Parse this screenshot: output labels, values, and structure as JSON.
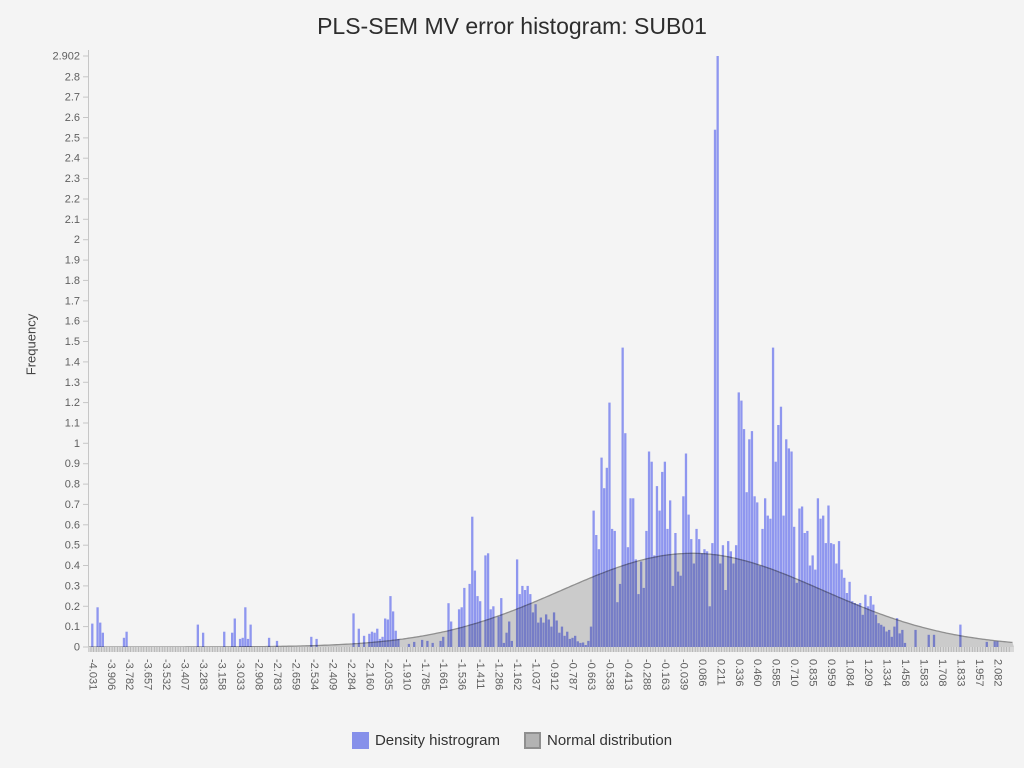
{
  "title": "PLS-SEM MV error histogram: SUB01",
  "ylabel": "Frequency",
  "legend": [
    {
      "label": "Density histrogram",
      "color": "#8690ea"
    },
    {
      "label": "Normal distribution",
      "color": "#b3b3b3",
      "border": "#8f8f8f"
    }
  ],
  "chart_data": {
    "type": "bar",
    "title": "PLS-SEM MV error histogram: SUB01",
    "xlabel": "",
    "ylabel": "Frequency",
    "ylim": [
      0,
      2.902
    ],
    "bin_start": -4.031,
    "bin_width": 0.01782,
    "y_ticks": [
      "0",
      "0.1",
      "0.2",
      "0.3",
      "0.4",
      "0.5",
      "0.6",
      "0.7",
      "0.8",
      "0.9",
      "1",
      "1.1",
      "1.2",
      "1.3",
      "1.4",
      "1.5",
      "1.6",
      "1.7",
      "1.8",
      "1.9",
      "2",
      "2.1",
      "2.2",
      "2.3",
      "2.4",
      "2.5",
      "2.6",
      "2.7",
      "2.8",
      "2.902"
    ],
    "x_tick_labels": [
      "-4.031",
      "-3.906",
      "-3.782",
      "-3.657",
      "-3.532",
      "-3.407",
      "-3.283",
      "-3.158",
      "-3.033",
      "-2.908",
      "-2.783",
      "-2.659",
      "-2.534",
      "-2.409",
      "-2.284",
      "-2.160",
      "-2.035",
      "-1.910",
      "-1.785",
      "-1.661",
      "-1.536",
      "-1.411",
      "-1.286",
      "-1.162",
      "-1.037",
      "-0.912",
      "-0.787",
      "-0.663",
      "-0.538",
      "-0.413",
      "-0.288",
      "-0.163",
      "-0.039",
      "0.086",
      "0.211",
      "0.336",
      "0.460",
      "0.585",
      "0.710",
      "0.835",
      "0.959",
      "1.084",
      "1.209",
      "1.334",
      "1.458",
      "1.583",
      "1.708",
      "1.833",
      "1.957",
      "2.082"
    ],
    "x_label_every_n_bins": 7,
    "normal_curve": {
      "mean": 0.02,
      "sd": 0.88,
      "peak": 0.46
    },
    "legend_labels": [
      "Density histrogram",
      "Normal distribution"
    ],
    "colors": {
      "bar": "#949dfa",
      "legend_bar": "#8690ea",
      "curve_fill": "#cbcbcb",
      "curve_stroke": "#8f8f8f",
      "band": "#d9d9d9",
      "band_tick": "#ababab",
      "axis": "#c6c6c6",
      "tick_text": "#5f5f5f"
    },
    "values": [
      0.115,
      0,
      0.195,
      0.12,
      0.07,
      0,
      0,
      0,
      0,
      0,
      0,
      0,
      0.045,
      0.075,
      0,
      0,
      0,
      0,
      0,
      0,
      0,
      0,
      0,
      0,
      0,
      0,
      0,
      0,
      0,
      0,
      0,
      0,
      0,
      0,
      0,
      0,
      0,
      0,
      0,
      0,
      0.11,
      0,
      0.07,
      0,
      0,
      0,
      0,
      0,
      0,
      0,
      0.075,
      0,
      0,
      0.07,
      0.14,
      0,
      0.04,
      0.045,
      0.195,
      0.04,
      0.11,
      0,
      0,
      0,
      0,
      0,
      0,
      0.045,
      0,
      0,
      0.03,
      0,
      0,
      0,
      0,
      0,
      0,
      0,
      0,
      0,
      0,
      0,
      0,
      0.05,
      0,
      0.04,
      0,
      0,
      0,
      0,
      0,
      0,
      0,
      0,
      0,
      0,
      0,
      0,
      0,
      0.165,
      0,
      0.09,
      0,
      0.055,
      0,
      0.065,
      0.075,
      0.07,
      0.09,
      0.04,
      0.05,
      0.14,
      0.135,
      0.25,
      0.175,
      0.08,
      0.04,
      0,
      0,
      0,
      0.015,
      0,
      0.025,
      0,
      0,
      0.035,
      0,
      0.03,
      0,
      0.02,
      0,
      0,
      0.03,
      0.05,
      0,
      0.215,
      0.125,
      0,
      0,
      0.185,
      0.195,
      0.29,
      0,
      0.31,
      0.64,
      0.375,
      0.25,
      0.225,
      0,
      0.45,
      0.46,
      0.185,
      0.2,
      0,
      0.15,
      0.24,
      0.02,
      0.07,
      0.125,
      0.03,
      0,
      0.43,
      0.26,
      0.3,
      0.28,
      0.3,
      0.26,
      0.17,
      0.21,
      0.12,
      0.145,
      0.12,
      0.16,
      0.135,
      0.1,
      0.17,
      0.13,
      0.07,
      0.1,
      0.055,
      0.075,
      0.04,
      0.045,
      0.055,
      0.028,
      0.02,
      0.022,
      0.01,
      0.03,
      0.1,
      0.67,
      0.55,
      0.48,
      0.93,
      0.78,
      0.88,
      1.2,
      0.58,
      0.57,
      0.22,
      0.31,
      1.47,
      1.05,
      0.49,
      0.73,
      0.73,
      0.43,
      0.26,
      0.42,
      0.29,
      0.57,
      0.96,
      0.91,
      0.45,
      0.79,
      0.67,
      0.86,
      0.91,
      0.58,
      0.72,
      0.3,
      0.56,
      0.37,
      0.35,
      0.74,
      0.95,
      0.65,
      0.53,
      0.41,
      0.58,
      0.53,
      0.46,
      0.48,
      0.47,
      0.2,
      0.51,
      2.54,
      2.902,
      0.41,
      0.5,
      0.28,
      0.52,
      0.47,
      0.41,
      0.5,
      1.25,
      1.21,
      1.07,
      0.76,
      1.02,
      1.06,
      0.74,
      0.71,
      0.4,
      0.58,
      0.73,
      0.645,
      0.63,
      1.47,
      0.91,
      1.09,
      1.18,
      0.645,
      1.02,
      0.975,
      0.96,
      0.59,
      0.315,
      0.68,
      0.69,
      0.56,
      0.57,
      0.4,
      0.45,
      0.38,
      0.73,
      0.63,
      0.645,
      0.51,
      0.695,
      0.51,
      0.505,
      0.41,
      0.52,
      0.38,
      0.34,
      0.265,
      0.32,
      0.225,
      0.216,
      0.21,
      0.216,
      0.158,
      0.257,
      0.2,
      0.25,
      0.208,
      0.158,
      0.117,
      0.109,
      0.1,
      0.076,
      0.084,
      0.05,
      0.1,
      0.142,
      0.067,
      0.084,
      0.02,
      0,
      0,
      0,
      0.084,
      0,
      0,
      0,
      0,
      0.06,
      0,
      0.06,
      0,
      0,
      0,
      0,
      0,
      0,
      0,
      0,
      0,
      0.11,
      0,
      0,
      0,
      0,
      0,
      0,
      0,
      0,
      0,
      0.025,
      0,
      0,
      0.028,
      0.028,
      0,
      0,
      0,
      0
    ]
  }
}
